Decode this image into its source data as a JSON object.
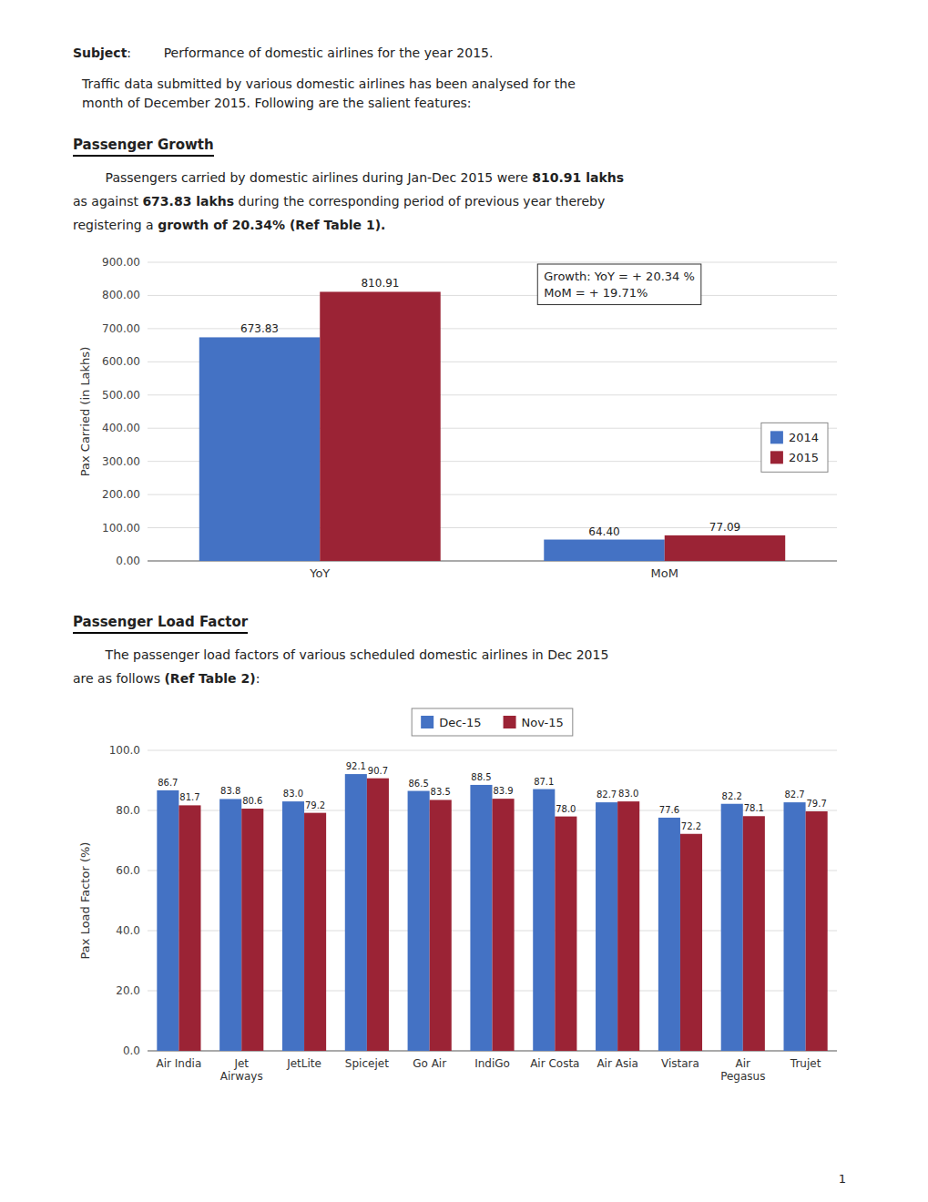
{
  "page": {
    "subject_label": "Subject",
    "subject": ":        Performance of domestic airlines for the year 2015.",
    "intro": [
      "Traffic data submitted by various domestic airlines has been analysed for the",
      "month of December 2015. Following are the salient features:"
    ],
    "sections": [
      {
        "heading": "Passenger Growth",
        "lines": [
          [
            {
              "text": "        Passengers carried by domestic airlines during Jan-Dec 2015 were "
            },
            {
              "text": "810.91 lakhs",
              "bold": true
            }
          ],
          [
            {
              "text": "as against "
            },
            {
              "text": "673.83 lakhs",
              "bold": true
            },
            {
              "text": " during the corresponding period of previous year thereby"
            }
          ],
          [
            {
              "text": "registering a "
            },
            {
              "text": "growth of 20.34% (Ref Table 1).",
              "bold": true
            }
          ]
        ]
      },
      {
        "heading": "Passenger Load Factor",
        "lines": [
          [
            {
              "text": "        The passenger load factors of various scheduled domestic airlines in Dec 2015"
            }
          ],
          [
            {
              "text": "are as follows "
            },
            {
              "text": "(Ref Table 2)",
              "bold": true
            },
            {
              "text": ":"
            }
          ]
        ]
      }
    ],
    "page_number": "1"
  },
  "chart_data": [
    {
      "type": "bar",
      "categories": [
        "YoY",
        "MoM"
      ],
      "series": [
        {
          "name": "2014",
          "color": "#4472C4",
          "values": [
            673.83,
            64.4
          ],
          "value_labels": [
            "673.83",
            "64.40"
          ]
        },
        {
          "name": "2015",
          "color": "#9B2335",
          "values": [
            810.91,
            77.09
          ]
        }
      ],
      "y_label": "Pax Carried (in Lakhs)",
      "ylim": [
        0,
        900
      ],
      "yticks": [
        {
          "value": 0,
          "label": "0.00"
        },
        {
          "value": 100,
          "label": "100.00"
        },
        {
          "value": 200,
          "label": "200.00"
        },
        {
          "value": 300,
          "label": "300.00"
        },
        {
          "value": 400,
          "label": "400.00"
        },
        {
          "value": 500,
          "label": "500.00"
        },
        {
          "value": 600,
          "label": "600.00"
        },
        {
          "value": 700,
          "label": "700.00"
        },
        {
          "value": 800,
          "label": "800.00"
        },
        {
          "value": 900,
          "label": "900.00"
        }
      ],
      "annotations": [
        "Growth:  YoY   = + 20.34 %",
        "MoM = + 19.71%"
      ],
      "grid": true,
      "legend": "right",
      "data_labels": true
    },
    {
      "type": "bar",
      "categories": [
        "Air India",
        "Jet\nAirways",
        "JetLite",
        "Spicejet",
        "Go Air",
        "IndiGo",
        "Air Costa",
        "Air Asia",
        "Vistara",
        "Air\nPegasus",
        "Trujet"
      ],
      "series": [
        {
          "name": "Dec-15",
          "color": "#4472C4",
          "values": [
            86.7,
            83.8,
            83.0,
            92.1,
            86.5,
            88.5,
            87.1,
            82.7,
            77.6,
            82.2,
            82.7
          ],
          "value_labels": [
            "86.7",
            "83.8",
            "83.0",
            "92.1",
            "86.5",
            "88.5",
            "87.1",
            "82.7",
            "77.6",
            "82.2",
            "82.7"
          ]
        },
        {
          "name": "Nov-15",
          "color": "#9B2335",
          "values": [
            81.7,
            80.6,
            79.2,
            90.7,
            83.5,
            83.9,
            78.0,
            83.0,
            72.2,
            78.1,
            79.7
          ],
          "value_labels": [
            "81.7",
            "80.6",
            "79.2",
            "90.7",
            "83.5",
            "83.9",
            "78.0",
            "83.0",
            "72.2",
            "78.1",
            "79.7"
          ]
        }
      ],
      "y_label": "Pax Load Factor (%)",
      "ylim": [
        0,
        100
      ],
      "yticks": [
        {
          "value": 0,
          "label": "0.0"
        },
        {
          "value": 20,
          "label": "20.0"
        },
        {
          "value": 40,
          "label": "40.0"
        },
        {
          "value": 60,
          "label": "60.0"
        },
        {
          "value": 80,
          "label": "80.0"
        },
        {
          "value": 100,
          "label": "100.0"
        }
      ],
      "grid": true,
      "legend": "top",
      "data_labels": true
    }
  ]
}
